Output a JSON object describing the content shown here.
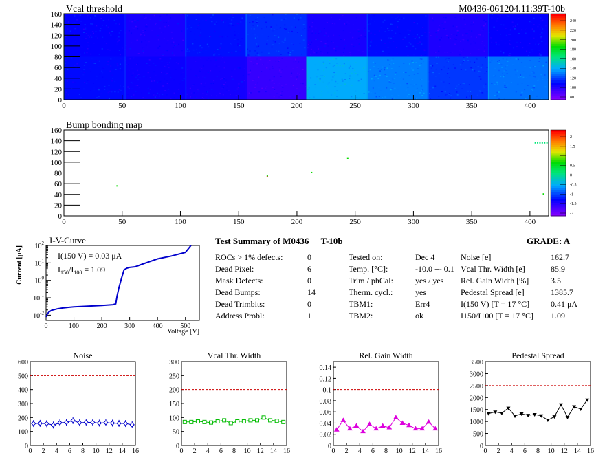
{
  "module_id": "M0436-061204.11:39T-10b",
  "vcal_map": {
    "title": "Vcal threshold",
    "x_ticks": [
      "0",
      "50",
      "100",
      "150",
      "200",
      "250",
      "300",
      "350",
      "400"
    ],
    "y_ticks": [
      "0",
      "20",
      "40",
      "60",
      "80",
      "100",
      "120",
      "140",
      "160"
    ],
    "palette_labels": [
      "240",
      "220",
      "200",
      "180",
      "160",
      "140",
      "120",
      "100",
      "80"
    ],
    "xlim": [
      0,
      416
    ],
    "ylim": [
      0,
      160
    ]
  },
  "bump_map": {
    "title": "Bump bonding map",
    "x_ticks": [
      "0",
      "50",
      "100",
      "150",
      "200",
      "250",
      "300",
      "350",
      "400"
    ],
    "y_ticks": [
      "0",
      "20",
      "40",
      "60",
      "80",
      "100",
      "120",
      "140",
      "160"
    ],
    "palette_labels": [
      "2",
      "1.5",
      "1",
      "0.5",
      "0",
      "-0.5",
      "-1",
      "-1.5",
      "-2"
    ],
    "xlim": [
      0,
      416
    ],
    "ylim": [
      0,
      160
    ]
  },
  "iv_curve": {
    "title": "I-V-Curve",
    "xlabel": "Voltage [V]",
    "ylabel": "Current [μA]",
    "x_ticks": [
      "0",
      "100",
      "200",
      "300",
      "400",
      "500"
    ],
    "annotation_line1": "I(150 V) = 0.03 μA",
    "annotation_line2": "I150/I100 = 1.09",
    "ratio_num": "150",
    "ratio_den": "100",
    "ratio_val": "= 1.09"
  },
  "summary": {
    "title": "Test Summary of M0436",
    "module_code": "T-10b",
    "grade": "GRADE:  A",
    "col1": [
      {
        "label": "ROCs > 1% defects:",
        "value": "0"
      },
      {
        "label": "Dead Pixel:",
        "value": "6"
      },
      {
        "label": "Mask Defects:",
        "value": "0"
      },
      {
        "label": "Dead Bumps:",
        "value": "14"
      },
      {
        "label": "Dead Trimbits:",
        "value": "0"
      },
      {
        "label": "Address Probl:",
        "value": "1"
      }
    ],
    "col2": [
      {
        "label": "Tested on:",
        "value": "Dec 4"
      },
      {
        "label": "Temp. [°C]:",
        "value": "-10.0 +- 0.1"
      },
      {
        "label": "Trim / phCal:",
        "value": "yes / yes"
      },
      {
        "label": "Therm. cycl.:",
        "value": "yes"
      },
      {
        "label": "TBM1:",
        "value": "Err4"
      },
      {
        "label": "TBM2:",
        "value": "ok"
      }
    ],
    "col3": [
      {
        "label": "Noise [e]",
        "value": "162.7"
      },
      {
        "label": "Vcal Thr. Width [e]",
        "value": "85.9"
      },
      {
        "label": "Rel. Gain Width [%]",
        "value": "3.5"
      },
      {
        "label": "Pedestal Spread [e]",
        "value": "1385.7"
      },
      {
        "label": "I(150 V) [T = 17 °C]",
        "value": "0.41 μA"
      },
      {
        "label": "I150/I100  [T = 17 °C]",
        "value": "1.09"
      }
    ]
  },
  "chart_data": [
    {
      "type": "heatmap",
      "title": "Vcal threshold",
      "xlim": [
        0,
        416
      ],
      "ylim": [
        0,
        160
      ],
      "zlim": [
        80,
        250
      ],
      "roc_grid": {
        "columns": 8,
        "rows": 2,
        "roc_width": 52,
        "roc_height": 80
      },
      "roc_mean_values": {
        "top_row": [
          110,
          105,
          113,
          118,
          105,
          112,
          104,
          110
        ],
        "bottom_row": [
          112,
          108,
          106,
          98,
          140,
          132,
          120,
          130
        ]
      }
    },
    {
      "type": "scatter",
      "title": "Bump bonding map",
      "xlim": [
        0,
        416
      ],
      "ylim": [
        0,
        160
      ],
      "zlim": [
        -2,
        2
      ],
      "points": [
        {
          "x": 45,
          "y": 57,
          "z": 0.5
        },
        {
          "x": 174,
          "y": 74,
          "z": 2
        },
        {
          "x": 174,
          "y": 76,
          "z": 0.5
        },
        {
          "x": 212,
          "y": 82,
          "z": 0.5
        },
        {
          "x": 243,
          "y": 108,
          "z": 0.5
        },
        {
          "x": 404,
          "y": 137,
          "z": 0
        },
        {
          "x": 406,
          "y": 137,
          "z": 0
        },
        {
          "x": 408,
          "y": 137,
          "z": 0
        },
        {
          "x": 410,
          "y": 137,
          "z": 0
        },
        {
          "x": 412,
          "y": 137,
          "z": 0
        },
        {
          "x": 414,
          "y": 137,
          "z": 0
        },
        {
          "x": 411,
          "y": 42,
          "z": 0.5
        }
      ]
    },
    {
      "type": "line",
      "title": "I-V-Curve",
      "xlabel": "Voltage [V]",
      "ylabel": "Current [μA]",
      "xlim": [
        0,
        550
      ],
      "ylim": [
        0.005,
        100
      ],
      "y_scale": "log",
      "x": [
        0,
        5,
        10,
        20,
        40,
        60,
        80,
        100,
        150,
        200,
        240,
        250,
        255,
        262,
        270,
        280,
        290,
        300,
        320,
        350,
        400,
        450,
        500,
        520
      ],
      "y": [
        0.008,
        0.012,
        0.015,
        0.019,
        0.023,
        0.026,
        0.028,
        0.03,
        0.033,
        0.036,
        0.04,
        0.045,
        0.13,
        0.4,
        1.2,
        4.0,
        5.0,
        5.5,
        6.0,
        9.0,
        17,
        25,
        40,
        100
      ]
    },
    {
      "type": "line",
      "title": "Noise",
      "x": [
        0,
        1,
        2,
        3,
        4,
        5,
        6,
        7,
        8,
        9,
        10,
        11,
        12,
        13,
        14,
        15
      ],
      "y": [
        157,
        158,
        156,
        146,
        162,
        165,
        178,
        162,
        165,
        165,
        160,
        163,
        160,
        158,
        157,
        148
      ],
      "xlim": [
        0,
        16
      ],
      "ylim": [
        0,
        600
      ],
      "limit_line": 500,
      "x_ticks": [
        "0",
        "2",
        "4",
        "6",
        "8",
        "10",
        "12",
        "14",
        "16"
      ],
      "y_ticks": [
        "0",
        "100",
        "200",
        "300",
        "400",
        "500",
        "600"
      ],
      "color": "#0000cc"
    },
    {
      "type": "line",
      "title": "Vcal Thr. Width",
      "x": [
        0,
        1,
        2,
        3,
        4,
        5,
        6,
        7,
        8,
        9,
        10,
        11,
        12,
        13,
        14,
        15
      ],
      "y": [
        84,
        84,
        86,
        84,
        82,
        86,
        90,
        80,
        86,
        86,
        90,
        90,
        100,
        90,
        88,
        84
      ],
      "xlim": [
        0,
        16
      ],
      "ylim": [
        0,
        300
      ],
      "limit_line": 200,
      "x_ticks": [
        "0",
        "2",
        "4",
        "6",
        "8",
        "10",
        "12",
        "14",
        "16"
      ],
      "y_ticks": [
        "0",
        "50",
        "100",
        "150",
        "200",
        "250",
        "300"
      ],
      "color": "#00bb00"
    },
    {
      "type": "line",
      "title": "Rel. Gain Width",
      "x": [
        0,
        1,
        2,
        3,
        4,
        5,
        6,
        7,
        8,
        9,
        10,
        11,
        12,
        13,
        14,
        15
      ],
      "y": [
        0.028,
        0.045,
        0.03,
        0.035,
        0.025,
        0.038,
        0.03,
        0.035,
        0.032,
        0.05,
        0.04,
        0.036,
        0.03,
        0.03,
        0.042,
        0.03
      ],
      "xlim": [
        0,
        16
      ],
      "ylim": [
        0,
        0.15
      ],
      "limit_line": 0.1,
      "x_ticks": [
        "0",
        "2",
        "4",
        "6",
        "8",
        "10",
        "12",
        "14",
        "16"
      ],
      "y_ticks": [
        "0",
        "0.02",
        "0.04",
        "0.06",
        "0.08",
        "0.1",
        "0.12",
        "0.14"
      ],
      "color": "#dd00dd"
    },
    {
      "type": "line",
      "title": "Pedestal Spread",
      "x": [
        0,
        1,
        2,
        3,
        4,
        5,
        6,
        7,
        8,
        9,
        10,
        11,
        12,
        13,
        14,
        15
      ],
      "y": [
        1330,
        1400,
        1350,
        1560,
        1230,
        1320,
        1260,
        1290,
        1240,
        1060,
        1200,
        1700,
        1180,
        1620,
        1520,
        1900
      ],
      "xlim": [
        0,
        16
      ],
      "ylim": [
        0,
        3500
      ],
      "limit_line": 2500,
      "x_ticks": [
        "0",
        "2",
        "4",
        "6",
        "8",
        "10",
        "12",
        "14",
        "16"
      ],
      "y_ticks": [
        "0",
        "500",
        "1000",
        "1500",
        "2000",
        "2500",
        "3000",
        "3500"
      ],
      "color": "#000000"
    }
  ]
}
